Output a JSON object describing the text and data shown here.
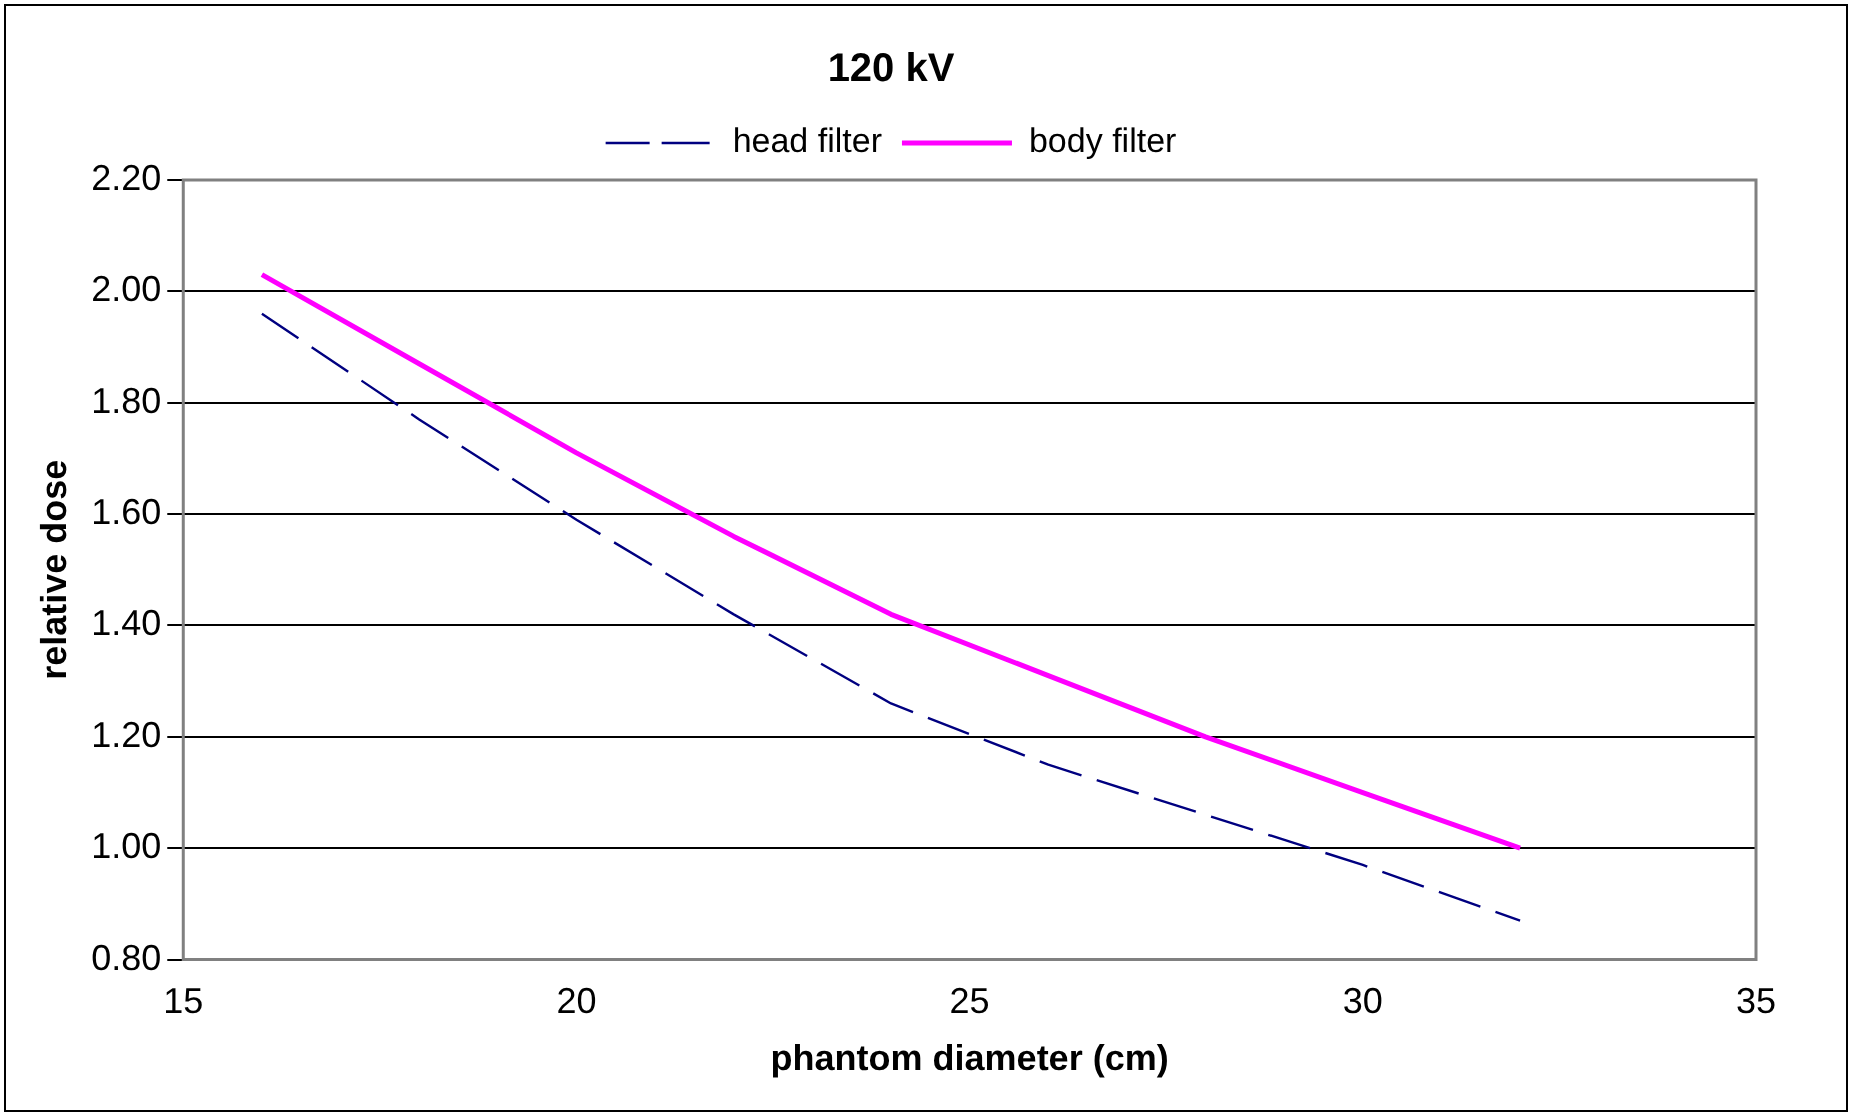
{
  "chart_data": {
    "type": "line",
    "title": "120 kV",
    "xlabel": "phantom diameter (cm)",
    "ylabel": "relative dose",
    "x": [
      16,
      18,
      20,
      22,
      24,
      26,
      28,
      30,
      32
    ],
    "series": [
      {
        "name": "head filter",
        "color": "#000080",
        "line_style": "dashed",
        "values": [
          1.96,
          1.77,
          1.59,
          1.42,
          1.26,
          1.15,
          1.06,
          0.97,
          0.87
        ]
      },
      {
        "name": "body filter",
        "color": "#ff00ff",
        "line_style": "solid",
        "values": [
          2.03,
          1.87,
          1.71,
          1.56,
          1.42,
          1.31,
          1.2,
          1.1,
          1.0
        ]
      }
    ],
    "xlim": [
      15,
      35
    ],
    "xticks": [
      15,
      20,
      25,
      30,
      35
    ],
    "ylim": [
      0.8,
      2.2
    ],
    "yticks": [
      {
        "value": 0.8,
        "label": "0.80"
      },
      {
        "value": 1.0,
        "label": "1.00"
      },
      {
        "value": 1.2,
        "label": "1.20"
      },
      {
        "value": 1.4,
        "label": "1.40"
      },
      {
        "value": 1.6,
        "label": "1.60"
      },
      {
        "value": 1.8,
        "label": "1.80"
      },
      {
        "value": 2.0,
        "label": "2.00"
      },
      {
        "value": 2.2,
        "label": "2.20"
      }
    ],
    "grid": "y",
    "legend": "top",
    "marker": "none"
  }
}
